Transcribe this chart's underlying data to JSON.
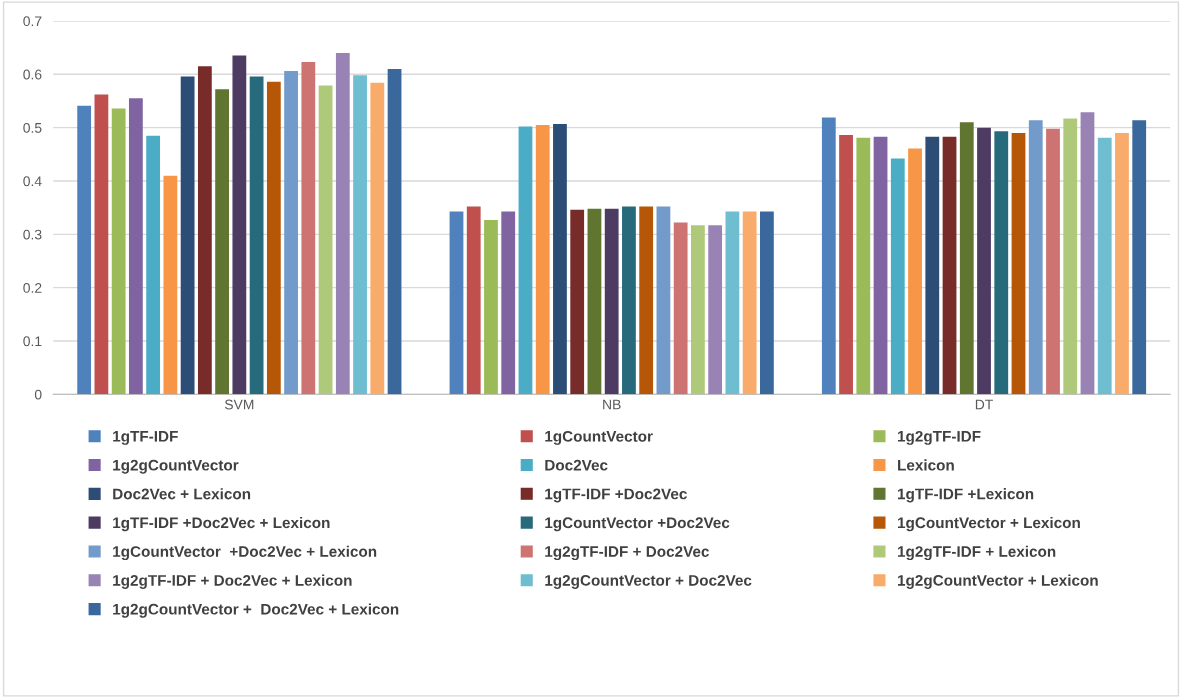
{
  "chart_data": {
    "type": "bar",
    "categories": [
      "SVM",
      "NB",
      "DT"
    ],
    "ylim": [
      0,
      0.7
    ],
    "yticks": [
      0,
      0.1,
      0.2,
      0.3,
      0.4,
      0.5,
      0.6,
      0.7
    ],
    "grid": "y",
    "legend": "bottom",
    "series": [
      {
        "name": "1gTF-IDF",
        "color": "#4f81bd",
        "values": [
          0.541,
          0.343,
          0.519
        ]
      },
      {
        "name": "1gCountVector",
        "color": "#c0504d",
        "values": [
          0.562,
          0.352,
          0.486
        ]
      },
      {
        "name": "1g2gTF-IDF",
        "color": "#9bbb59",
        "values": [
          0.536,
          0.327,
          0.481
        ]
      },
      {
        "name": "1g2gCountVector",
        "color": "#8064a2",
        "values": [
          0.555,
          0.343,
          0.483
        ]
      },
      {
        "name": "Doc2Vec",
        "color": "#4bacc6",
        "values": [
          0.485,
          0.502,
          0.442
        ]
      },
      {
        "name": "Lexicon",
        "color": "#f79646",
        "values": [
          0.41,
          0.505,
          0.461
        ]
      },
      {
        "name": "Doc2Vec + Lexicon",
        "color": "#2c4d75",
        "values": [
          0.596,
          0.507,
          0.483
        ]
      },
      {
        "name": "1gTF-IDF +Doc2Vec",
        "color": "#772c2a",
        "values": [
          0.615,
          0.346,
          0.483
        ]
      },
      {
        "name": "1gTF-IDF +Lexicon",
        "color": "#5f7530",
        "values": [
          0.572,
          0.348,
          0.51
        ]
      },
      {
        "name": "1gTF-IDF +Doc2Vec + Lexicon",
        "color": "#4d3b62",
        "values": [
          0.635,
          0.348,
          0.5
        ]
      },
      {
        "name": "1gCountVector +Doc2Vec",
        "color": "#276a7c",
        "values": [
          0.596,
          0.352,
          0.493
        ]
      },
      {
        "name": "1gCountVector + Lexicon",
        "color": "#b65708",
        "values": [
          0.586,
          0.352,
          0.49
        ]
      },
      {
        "name": "1gCountVector  +Doc2Vec + Lexicon",
        "color": "#729aca",
        "values": [
          0.606,
          0.352,
          0.514
        ]
      },
      {
        "name": "1g2gTF-IDF + Doc2Vec",
        "color": "#cd7371",
        "values": [
          0.623,
          0.322,
          0.498
        ]
      },
      {
        "name": "1g2gTF-IDF + Lexicon",
        "color": "#afc97a",
        "values": [
          0.579,
          0.317,
          0.517
        ]
      },
      {
        "name": "1g2gTF-IDF + Doc2Vec + Lexicon",
        "color": "#9983b5",
        "values": [
          0.64,
          0.317,
          0.529
        ]
      },
      {
        "name": "1g2gCountVector + Doc2Vec",
        "color": "#6fbdd1",
        "values": [
          0.598,
          0.343,
          0.481
        ]
      },
      {
        "name": "1g2gCountVector + Lexicon",
        "color": "#f9ab6b",
        "values": [
          0.584,
          0.343,
          0.49
        ]
      },
      {
        "name": "1g2gCountVector +  Doc2Vec + Lexicon",
        "color": "#3a679c",
        "values": [
          0.61,
          0.343,
          0.514
        ]
      }
    ]
  }
}
